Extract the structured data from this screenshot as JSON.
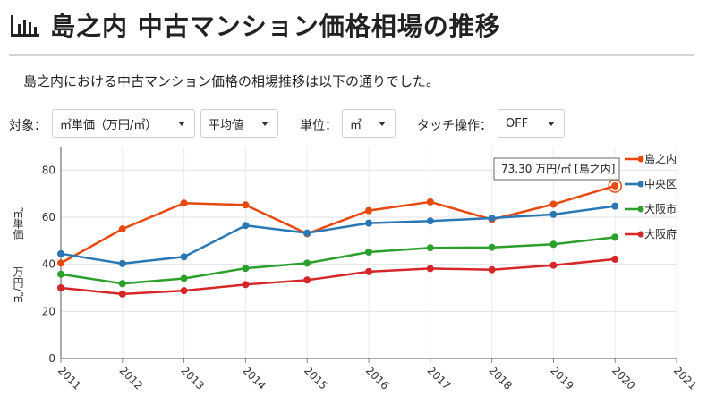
{
  "page": {
    "title": "島之内 中古マンション価格相場の推移",
    "description": "島之内における中古マンション価格の相場推移は以下の通りでした。"
  },
  "controls": {
    "target_label": "対象：",
    "target_value": "㎡単価（万円/㎡）",
    "stat_value": "平均値",
    "unit_label": "単位：",
    "unit_value": "㎡",
    "touch_label": "タッチ操作：",
    "touch_value": "OFF"
  },
  "chart_data": {
    "type": "line",
    "x": [
      2011,
      2012,
      2013,
      2014,
      2015,
      2016,
      2017,
      2018,
      2019,
      2020
    ],
    "xticks": [
      "2011",
      "2012",
      "2013",
      "2014",
      "2015",
      "2016",
      "2017",
      "2018",
      "2019",
      "2020",
      "2021"
    ],
    "xlim": [
      2011,
      2021
    ],
    "ylim": [
      0,
      90
    ],
    "yticks": [
      "0",
      "20",
      "40",
      "60",
      "80"
    ],
    "ylabel_top": "㎡単価",
    "ylabel_bottom": "万円/㎡",
    "grid": true,
    "legend_position": "right",
    "tooltip": {
      "text": "73.30 万円/㎡ [島之内]",
      "series_index": 0,
      "point_index": 9
    },
    "series": [
      {
        "name": "島之内",
        "color": "#e8490f",
        "values": [
          40.5,
          55.0,
          66.0,
          65.2,
          53.0,
          62.8,
          66.5,
          59.0,
          65.5,
          73.3
        ]
      },
      {
        "name": "中央区",
        "color": "#2a77b5",
        "values": [
          44.5,
          40.3,
          43.2,
          56.5,
          53.3,
          57.5,
          58.4,
          59.6,
          61.2,
          64.7
        ]
      },
      {
        "name": "大阪市",
        "color": "#2ca02c",
        "values": [
          35.8,
          31.8,
          34.0,
          38.3,
          40.5,
          45.2,
          47.0,
          47.2,
          48.5,
          51.5
        ]
      },
      {
        "name": "大阪府",
        "color": "#d62728",
        "values": [
          30.0,
          27.4,
          28.8,
          31.4,
          33.3,
          36.9,
          38.2,
          37.7,
          39.6,
          42.2
        ]
      }
    ]
  }
}
